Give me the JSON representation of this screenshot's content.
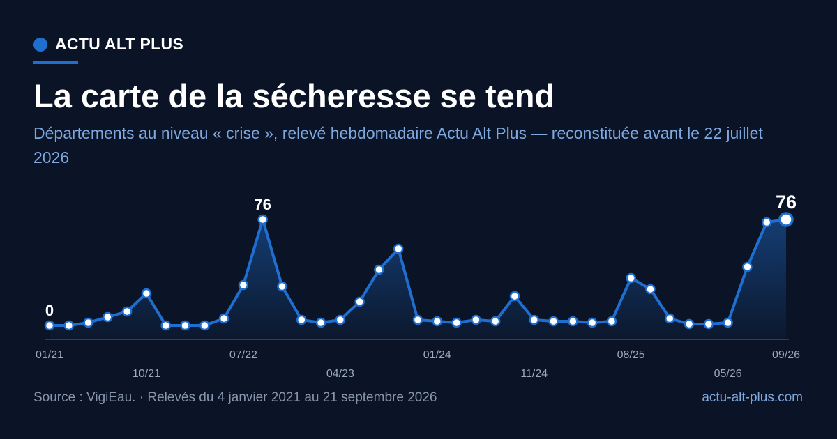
{
  "brand": "ACTU ALT PLUS",
  "chart_data": {
    "type": "line",
    "title": "La carte de la sécheresse se tend",
    "subtitle": "Départements au niveau « crise », relevé hebdomadaire Actu Alt Plus — reconstituée avant le 22 juillet 2026",
    "categories": [
      "01/21",
      null,
      null,
      null,
      null,
      "10/21",
      null,
      null,
      null,
      null,
      "07/22",
      null,
      null,
      null,
      null,
      "04/23",
      null,
      null,
      null,
      null,
      "01/24",
      null,
      null,
      null,
      null,
      "11/24",
      null,
      null,
      null,
      null,
      "08/25",
      null,
      null,
      null,
      null,
      "05/26",
      null,
      null,
      "09/26"
    ],
    "values": [
      0,
      0,
      2,
      6,
      10,
      23,
      0,
      0,
      0,
      5,
      29,
      76,
      28,
      4,
      2,
      4,
      17,
      40,
      55,
      4,
      3,
      2,
      4,
      3,
      21,
      4,
      3,
      3,
      2,
      3,
      34,
      26,
      5,
      1,
      1,
      2,
      42,
      74,
      76
    ],
    "value_labels": [
      "0",
      null,
      null,
      null,
      null,
      null,
      null,
      null,
      null,
      null,
      null,
      "76",
      null,
      null,
      null,
      null,
      null,
      null,
      null,
      null,
      null,
      null,
      null,
      null,
      null,
      null,
      null,
      null,
      null,
      null,
      null,
      null,
      null,
      null,
      null,
      null,
      null,
      null,
      "76"
    ],
    "color": "#1f6fd1",
    "ylim": [
      -10,
      80
    ]
  },
  "footer": {
    "source": "Source : VigiEau. · Relevés du 4 janvier 2021 au 21 septembre 2026",
    "site": "actu-alt-plus.com"
  }
}
